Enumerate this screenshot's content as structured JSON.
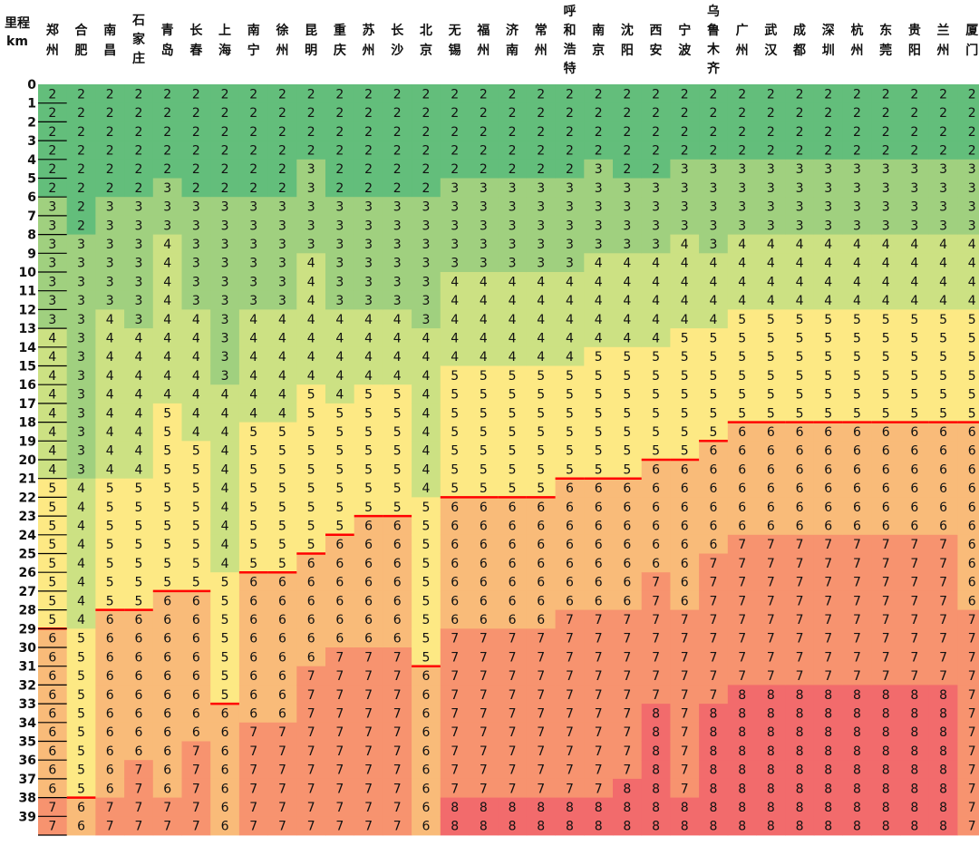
{
  "chart_data": {
    "type": "heatmap",
    "corner_header": [
      "里程",
      "km"
    ],
    "cities": [
      "郑州",
      "合肥",
      "南昌",
      "石家庄",
      "青岛",
      "长春",
      "上海",
      "南宁",
      "徐州",
      "昆明",
      "重庆",
      "苏州",
      "长沙",
      "北京",
      "无锡",
      "福州",
      "济南",
      "常州",
      "呼和浩特",
      "南京",
      "沈阳",
      "西安",
      "宁波",
      "乌鲁木齐",
      "广州",
      "武汉",
      "成都",
      "深圳",
      "杭州",
      "东莞",
      "贵阳",
      "兰州",
      "厦门"
    ],
    "thresholds": {
      "郑州": [
        6,
        13,
        21,
        29,
        38
      ],
      "合肥": [
        8,
        21,
        29,
        38
      ],
      "南昌": [
        6,
        12,
        21,
        28,
        38
      ],
      "石家庄": [
        6,
        13,
        21,
        28,
        36
      ],
      "青岛": [
        5,
        8,
        17,
        27,
        38
      ],
      "长春": [
        6,
        12,
        19,
        27,
        35
      ],
      "上海": [
        6,
        16,
        26,
        33
      ],
      "南宁": [
        6,
        12,
        18,
        26,
        34
      ],
      "徐州": [
        6,
        12,
        18,
        26,
        34
      ],
      "昆明": [
        4,
        9,
        16,
        25,
        31
      ],
      "重庆": [
        6,
        12,
        17,
        24,
        30
      ],
      "苏州": [
        6,
        12,
        16,
        23,
        30
      ],
      "长沙": [
        6,
        12,
        16,
        23,
        30
      ],
      "北京": [
        6,
        13,
        22,
        31
      ],
      "无锡": [
        5,
        10,
        15,
        22,
        29,
        38
      ],
      "福州": [
        5,
        10,
        15,
        22,
        29,
        38
      ],
      "济南": [
        5,
        10,
        15,
        22,
        29,
        38
      ],
      "常州": [
        5,
        10,
        15,
        22,
        29,
        38
      ],
      "呼和浩特": [
        5,
        10,
        15,
        21,
        28,
        38
      ],
      "南京": [
        4,
        9,
        14,
        21,
        28,
        38
      ],
      "沈阳": [
        5,
        9,
        14,
        21,
        28,
        37
      ],
      "西安": [
        5,
        9,
        14,
        20,
        26,
        33
      ],
      "宁波": [
        4,
        8,
        13,
        20,
        28,
        38
      ],
      "乌鲁木齐": [
        4,
        9,
        13,
        19,
        25,
        33
      ],
      "广州": [
        4,
        8,
        12,
        18,
        24,
        32
      ],
      "武汉": [
        4,
        8,
        12,
        18,
        24,
        32
      ],
      "成都": [
        4,
        8,
        12,
        18,
        24,
        32
      ],
      "深圳": [
        4,
        8,
        12,
        18,
        24,
        32
      ],
      "杭州": [
        4,
        8,
        12,
        18,
        24,
        32
      ],
      "东莞": [
        4,
        8,
        12,
        18,
        24,
        32
      ],
      "贵阳": [
        4,
        8,
        12,
        18,
        24,
        32
      ],
      "兰州": [
        4,
        8,
        12,
        18,
        24,
        32
      ],
      "厦门": [
        4,
        8,
        12,
        18,
        28
      ]
    },
    "y_ticks": [
      0,
      1,
      2,
      3,
      4,
      5,
      6,
      7,
      8,
      9,
      10,
      11,
      12,
      13,
      14,
      15,
      16,
      17,
      18,
      19,
      20,
      21,
      22,
      23,
      24,
      25,
      26,
      27,
      28,
      29,
      30,
      31,
      32,
      33,
      34,
      35,
      36,
      37,
      38,
      39
    ],
    "colors": {
      "2": "#63be7b",
      "3": "#a0d07f",
      "4": "#cce183",
      "5": "#fde984",
      "6": "#f9bb79",
      "7": "#f7936f",
      "8": "#f26b6c"
    },
    "boundary_line_color": "#ff0000",
    "boundary_value": 5
  }
}
